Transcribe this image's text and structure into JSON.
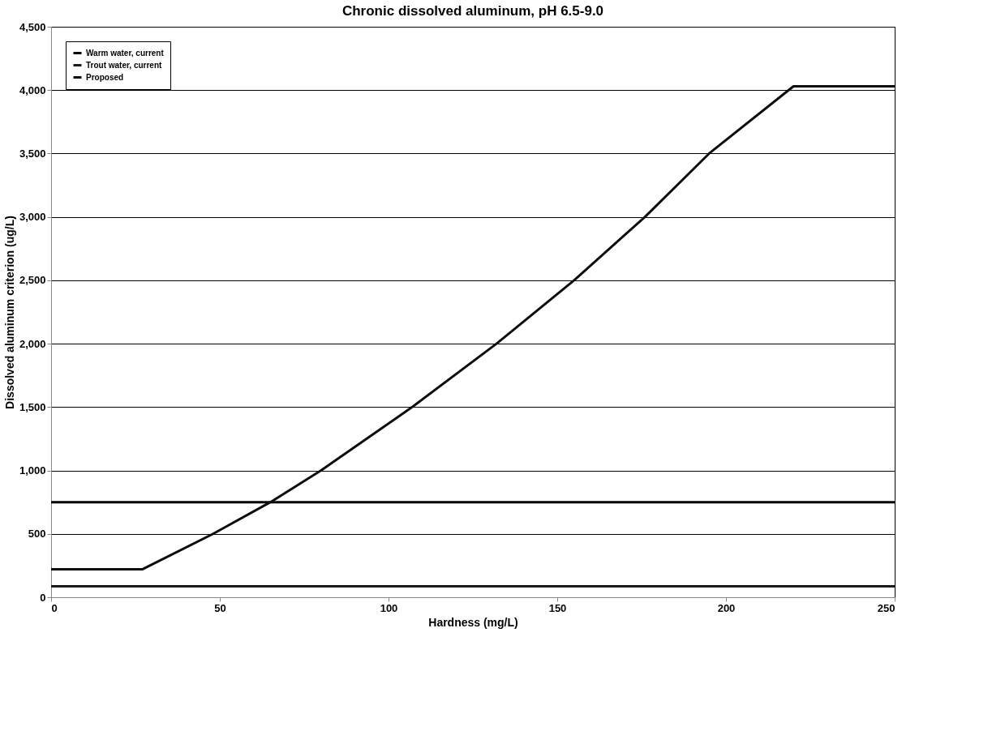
{
  "chart_data": {
    "type": "line",
    "title": "Chronic dissolved aluminum, pH 6.5-9.0",
    "xlabel": "Hardness (mg/L)",
    "ylabel": "Dissolved aluminum criterion (ug/L)",
    "xlim": [
      0,
      250
    ],
    "xticks": [
      0,
      50,
      100,
      150,
      200,
      250
    ],
    "ylim": [
      0,
      4500
    ],
    "yticks": [
      0,
      500,
      {
        "value": 1000,
        "label": "1,000"
      },
      {
        "value": 1500,
        "label": "1,500"
      },
      {
        "value": 2000,
        "label": "2,000"
      },
      {
        "value": 2500,
        "label": "2,500"
      },
      {
        "value": 3000,
        "label": "3,000"
      },
      {
        "value": 3500,
        "label": "3,500"
      },
      {
        "value": 4000,
        "label": "4,000"
      },
      {
        "value": 4500,
        "label": "4,500"
      }
    ],
    "grid": "y",
    "legend": "top left",
    "marker": "none",
    "line_style": "solid",
    "series": [
      {
        "name": "Warm water, current",
        "color": "#000000",
        "x": [
          0,
          250
        ],
        "values": [
          750,
          750
        ]
      },
      {
        "name": "Trout water, current",
        "color": "#1a1a1a",
        "x": [
          0,
          250
        ],
        "values": [
          87,
          87
        ]
      },
      {
        "name": "Proposed",
        "color": "#0d0d0d",
        "x": [
          0,
          27,
          48,
          65,
          80,
          107,
          132,
          155,
          176,
          195,
          220,
          250
        ],
        "values": [
          220,
          220,
          500,
          750,
          1000,
          1500,
          2000,
          2500,
          3000,
          3500,
          4030,
          4030
        ]
      }
    ]
  }
}
